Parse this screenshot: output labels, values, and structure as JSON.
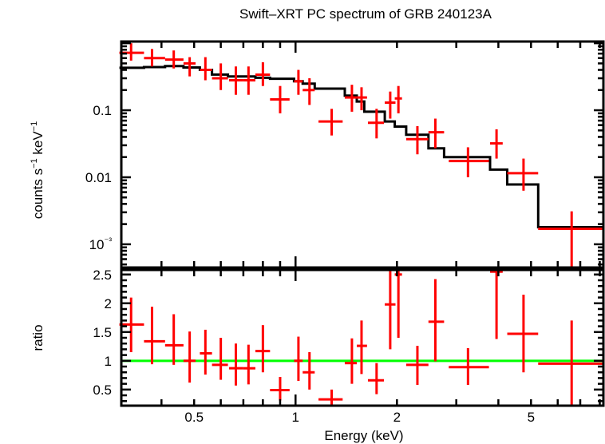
{
  "chart_data": [
    {
      "panel": "spectrum",
      "type": "scatter",
      "title": "Swift–XRT PC spectrum of GRB 240123A",
      "xlabel": "Energy (keV)",
      "ylabel": "counts s⁻¹ keV⁻¹",
      "xscale": "log",
      "yscale": "log",
      "xlim": [
        0.304,
        8.2
      ],
      "ylim": [
        0.00045,
        1.06
      ],
      "yticks": [
        {
          "value": 0.1,
          "label": "0.1"
        },
        {
          "value": 0.01,
          "label": "0.01"
        },
        {
          "value": 0.001,
          "label": "10⁻³"
        }
      ],
      "grid": false,
      "colors": {
        "data": "#ff0000",
        "model": "#000000"
      },
      "series": [
        {
          "name": "data",
          "style": "errorbar-cross",
          "points": [
            {
              "x": 0.325,
              "xlo": 0.3,
              "xhi": 0.355,
              "y": 0.72,
              "ylo": 0.55,
              "yhi": 1.0
            },
            {
              "x": 0.375,
              "xlo": 0.355,
              "xhi": 0.41,
              "y": 0.6,
              "ylo": 0.45,
              "yhi": 0.82
            },
            {
              "x": 0.435,
              "xlo": 0.41,
              "xhi": 0.465,
              "y": 0.57,
              "ylo": 0.42,
              "yhi": 0.78
            },
            {
              "x": 0.485,
              "xlo": 0.465,
              "xhi": 0.505,
              "y": 0.5,
              "ylo": 0.32,
              "yhi": 0.62
            },
            {
              "x": 0.54,
              "xlo": 0.52,
              "xhi": 0.565,
              "y": 0.4,
              "ylo": 0.28,
              "yhi": 0.62
            },
            {
              "x": 0.6,
              "xlo": 0.565,
              "xhi": 0.63,
              "y": 0.3,
              "ylo": 0.2,
              "yhi": 0.5
            },
            {
              "x": 0.665,
              "xlo": 0.635,
              "xhi": 0.7,
              "y": 0.28,
              "ylo": 0.17,
              "yhi": 0.45
            },
            {
              "x": 0.725,
              "xlo": 0.7,
              "xhi": 0.76,
              "y": 0.28,
              "ylo": 0.17,
              "yhi": 0.45
            },
            {
              "x": 0.8,
              "xlo": 0.76,
              "xhi": 0.84,
              "y": 0.34,
              "ylo": 0.23,
              "yhi": 0.52
            },
            {
              "x": 0.9,
              "xlo": 0.84,
              "xhi": 0.96,
              "y": 0.145,
              "ylo": 0.09,
              "yhi": 0.23
            },
            {
              "x": 1.02,
              "xlo": 0.99,
              "xhi": 1.05,
              "y": 0.27,
              "ylo": 0.17,
              "yhi": 0.4
            },
            {
              "x": 1.1,
              "xlo": 1.05,
              "xhi": 1.14,
              "y": 0.2,
              "ylo": 0.12,
              "yhi": 0.3
            },
            {
              "x": 1.28,
              "xlo": 1.17,
              "xhi": 1.38,
              "y": 0.068,
              "ylo": 0.042,
              "yhi": 0.105
            },
            {
              "x": 1.47,
              "xlo": 1.4,
              "xhi": 1.52,
              "y": 0.155,
              "ylo": 0.095,
              "yhi": 0.24
            },
            {
              "x": 1.57,
              "xlo": 1.52,
              "xhi": 1.63,
              "y": 0.155,
              "ylo": 0.1,
              "yhi": 0.22
            },
            {
              "x": 1.74,
              "xlo": 1.64,
              "xhi": 1.83,
              "y": 0.065,
              "ylo": 0.038,
              "yhi": 0.105
            },
            {
              "x": 1.91,
              "xlo": 1.84,
              "xhi": 1.98,
              "y": 0.13,
              "ylo": 0.075,
              "yhi": 0.19
            },
            {
              "x": 2.02,
              "xlo": 1.97,
              "xhi": 2.07,
              "y": 0.15,
              "ylo": 0.09,
              "yhi": 0.23
            },
            {
              "x": 2.3,
              "xlo": 2.13,
              "xhi": 2.48,
              "y": 0.037,
              "ylo": 0.022,
              "yhi": 0.058
            },
            {
              "x": 2.6,
              "xlo": 2.48,
              "xhi": 2.76,
              "y": 0.047,
              "ylo": 0.027,
              "yhi": 0.075
            },
            {
              "x": 3.25,
              "xlo": 2.85,
              "xhi": 3.75,
              "y": 0.0175,
              "ylo": 0.01,
              "yhi": 0.028
            },
            {
              "x": 3.95,
              "xlo": 3.78,
              "xhi": 4.12,
              "y": 0.032,
              "ylo": 0.019,
              "yhi": 0.052
            },
            {
              "x": 4.75,
              "xlo": 4.25,
              "xhi": 5.25,
              "y": 0.0115,
              "ylo": 0.0063,
              "yhi": 0.019
            },
            {
              "x": 6.6,
              "xlo": 5.25,
              "xhi": 8.2,
              "y": 0.0017,
              "ylo": 0.00045,
              "yhi": 0.0031
            }
          ]
        },
        {
          "name": "model",
          "style": "step",
          "bins": [
            {
              "xlo": 0.3,
              "xhi": 0.355,
              "y": 0.43
            },
            {
              "xlo": 0.355,
              "xhi": 0.41,
              "y": 0.44
            },
            {
              "xlo": 0.41,
              "xhi": 0.465,
              "y": 0.455
            },
            {
              "xlo": 0.465,
              "xhi": 0.52,
              "y": 0.435
            },
            {
              "xlo": 0.52,
              "xhi": 0.565,
              "y": 0.4
            },
            {
              "xlo": 0.565,
              "xhi": 0.63,
              "y": 0.34
            },
            {
              "xlo": 0.63,
              "xhi": 0.76,
              "y": 0.32
            },
            {
              "xlo": 0.76,
              "xhi": 0.84,
              "y": 0.305
            },
            {
              "xlo": 0.84,
              "xhi": 0.99,
              "y": 0.295
            },
            {
              "xlo": 0.99,
              "xhi": 1.05,
              "y": 0.27
            },
            {
              "xlo": 1.05,
              "xhi": 1.14,
              "y": 0.25
            },
            {
              "xlo": 1.14,
              "xhi": 1.4,
              "y": 0.21
            },
            {
              "xlo": 1.4,
              "xhi": 1.52,
              "y": 0.165
            },
            {
              "xlo": 1.52,
              "xhi": 1.6,
              "y": 0.135
            },
            {
              "xlo": 1.6,
              "xhi": 1.84,
              "y": 0.095
            },
            {
              "xlo": 1.84,
              "xhi": 1.97,
              "y": 0.068
            },
            {
              "xlo": 1.97,
              "xhi": 2.13,
              "y": 0.057
            },
            {
              "xlo": 2.13,
              "xhi": 2.48,
              "y": 0.043
            },
            {
              "xlo": 2.48,
              "xhi": 2.76,
              "y": 0.027
            },
            {
              "xlo": 2.76,
              "xhi": 3.78,
              "y": 0.02
            },
            {
              "xlo": 3.78,
              "xhi": 4.25,
              "y": 0.013
            },
            {
              "xlo": 4.25,
              "xhi": 5.25,
              "y": 0.0078
            },
            {
              "xlo": 5.25,
              "xhi": 8.2,
              "y": 0.0018
            }
          ]
        }
      ]
    },
    {
      "panel": "ratio",
      "type": "scatter",
      "xlabel": "Energy (keV)",
      "ylabel": "ratio",
      "xscale": "log",
      "yscale": "linear",
      "xlim": [
        0.304,
        8.2
      ],
      "ylim": [
        0.22,
        2.58
      ],
      "xticks": [
        {
          "value": 0.5,
          "label": "0.5"
        },
        {
          "value": 1,
          "label": "1"
        },
        {
          "value": 2,
          "label": "2"
        },
        {
          "value": 5,
          "label": "5"
        }
      ],
      "yticks": [
        {
          "value": 0.5,
          "label": "0.5"
        },
        {
          "value": 1,
          "label": "1"
        },
        {
          "value": 1.5,
          "label": "1.5"
        },
        {
          "value": 2,
          "label": "2"
        },
        {
          "value": 2.5,
          "label": "2.5"
        }
      ],
      "reference_line": {
        "y": 1,
        "color": "#00ff00"
      },
      "grid": false,
      "colors": {
        "data": "#ff0000"
      },
      "series": [
        {
          "name": "ratio",
          "style": "errorbar-cross",
          "points": [
            {
              "x": 0.325,
              "xlo": 0.3,
              "xhi": 0.355,
              "y": 1.63,
              "ylo": 1.15,
              "yhi": 2.1
            },
            {
              "x": 0.375,
              "xlo": 0.355,
              "xhi": 0.41,
              "y": 1.34,
              "ylo": 0.94,
              "yhi": 1.94
            },
            {
              "x": 0.435,
              "xlo": 0.41,
              "xhi": 0.465,
              "y": 1.27,
              "ylo": 0.93,
              "yhi": 1.81
            },
            {
              "x": 0.485,
              "xlo": 0.465,
              "xhi": 0.505,
              "y": 1.0,
              "ylo": 0.62,
              "yhi": 1.51
            },
            {
              "x": 0.54,
              "xlo": 0.52,
              "xhi": 0.565,
              "y": 1.13,
              "ylo": 0.76,
              "yhi": 1.54
            },
            {
              "x": 0.6,
              "xlo": 0.565,
              "xhi": 0.63,
              "y": 0.93,
              "ylo": 0.67,
              "yhi": 1.4
            },
            {
              "x": 0.665,
              "xlo": 0.635,
              "xhi": 0.7,
              "y": 0.87,
              "ylo": 0.57,
              "yhi": 1.3
            },
            {
              "x": 0.725,
              "xlo": 0.7,
              "xhi": 0.76,
              "y": 0.87,
              "ylo": 0.59,
              "yhi": 1.28
            },
            {
              "x": 0.8,
              "xlo": 0.76,
              "xhi": 0.84,
              "y": 1.17,
              "ylo": 0.8,
              "yhi": 1.62
            },
            {
              "x": 0.9,
              "xlo": 0.84,
              "xhi": 0.96,
              "y": 0.49,
              "ylo": 0.31,
              "yhi": 0.72
            },
            {
              "x": 1.02,
              "xlo": 0.99,
              "xhi": 1.05,
              "y": 1.0,
              "ylo": 0.65,
              "yhi": 1.42
            },
            {
              "x": 1.1,
              "xlo": 1.05,
              "xhi": 1.14,
              "y": 0.8,
              "ylo": 0.5,
              "yhi": 1.15
            },
            {
              "x": 1.28,
              "xlo": 1.17,
              "xhi": 1.38,
              "y": 0.33,
              "ylo": 0.22,
              "yhi": 0.5
            },
            {
              "x": 1.47,
              "xlo": 1.4,
              "xhi": 1.52,
              "y": 0.96,
              "ylo": 0.6,
              "yhi": 1.39
            },
            {
              "x": 1.57,
              "xlo": 1.52,
              "xhi": 1.63,
              "y": 1.26,
              "ylo": 0.77,
              "yhi": 1.7
            },
            {
              "x": 1.74,
              "xlo": 1.64,
              "xhi": 1.83,
              "y": 0.66,
              "ylo": 0.42,
              "yhi": 0.96
            },
            {
              "x": 1.91,
              "xlo": 1.84,
              "xhi": 1.98,
              "y": 1.98,
              "ylo": 1.2,
              "yhi": 2.58
            },
            {
              "x": 2.02,
              "xlo": 1.97,
              "xhi": 2.07,
              "y": 2.5,
              "ylo": 1.4,
              "yhi": 2.58
            },
            {
              "x": 2.3,
              "xlo": 2.13,
              "xhi": 2.48,
              "y": 0.93,
              "ylo": 0.58,
              "yhi": 1.26
            },
            {
              "x": 2.6,
              "xlo": 2.48,
              "xhi": 2.76,
              "y": 1.68,
              "ylo": 0.99,
              "yhi": 2.42
            },
            {
              "x": 3.25,
              "xlo": 2.85,
              "xhi": 3.75,
              "y": 0.89,
              "ylo": 0.58,
              "yhi": 1.22
            },
            {
              "x": 3.95,
              "xlo": 3.78,
              "xhi": 4.12,
              "y": 2.55,
              "ylo": 1.38,
              "yhi": 2.58
            },
            {
              "x": 4.75,
              "xlo": 4.25,
              "xhi": 5.25,
              "y": 1.47,
              "ylo": 0.8,
              "yhi": 2.15
            },
            {
              "x": 6.6,
              "xlo": 5.25,
              "xhi": 8.2,
              "y": 0.95,
              "ylo": 0.22,
              "yhi": 1.7
            }
          ]
        }
      ]
    }
  ]
}
